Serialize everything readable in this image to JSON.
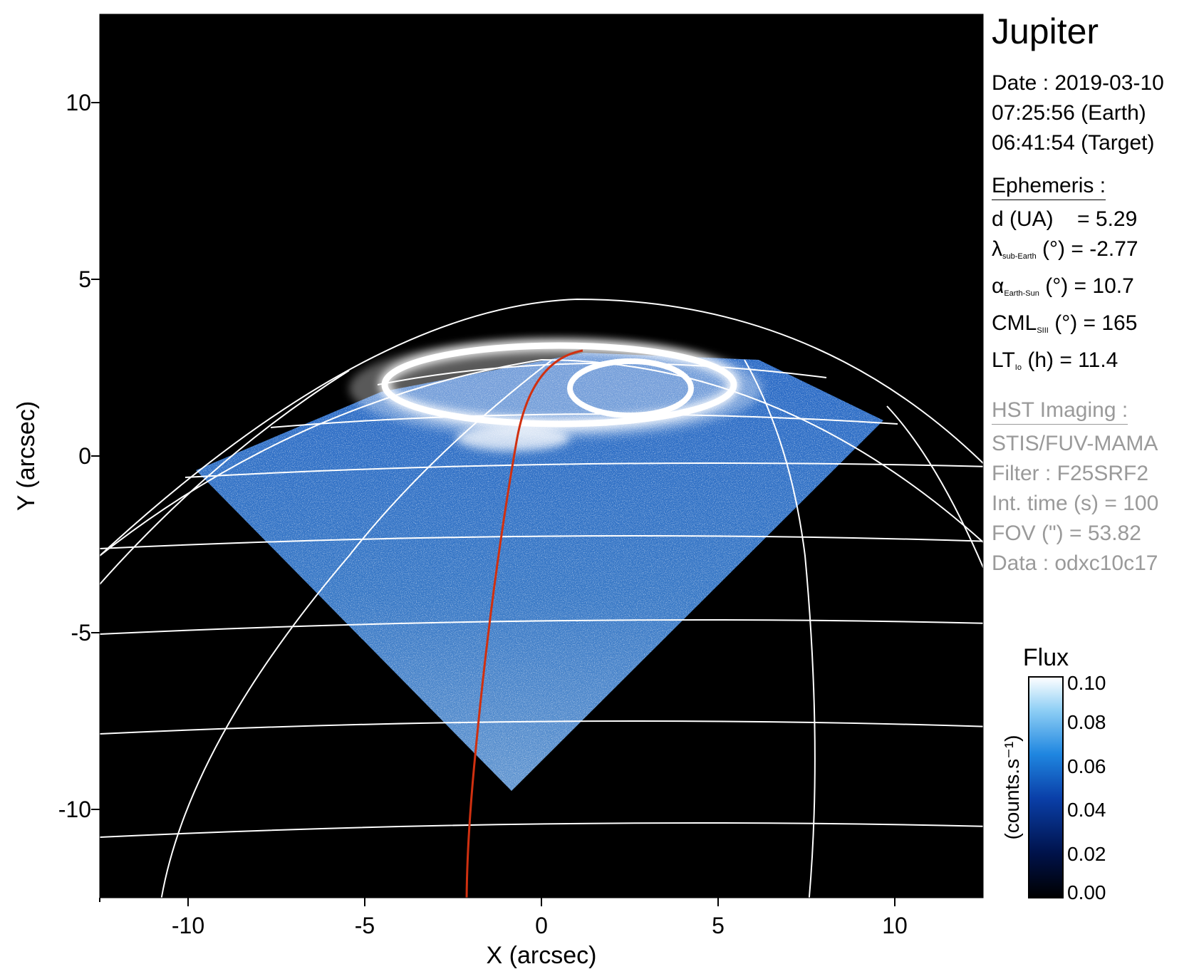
{
  "plot": {
    "xlabel": "X (arcsec)",
    "ylabel": "Y (arcsec)",
    "xlim": [
      -12.5,
      12.5
    ],
    "ylim": [
      -12.5,
      12.5
    ],
    "xticks": [
      "-10",
      "-5",
      "0",
      "5",
      "10"
    ],
    "yticks": [
      "10",
      "5",
      "0",
      "-5",
      "-10"
    ],
    "background": "#000000",
    "grid_color": "#ffffff",
    "footprint_color": "#d03010"
  },
  "info": {
    "title": "Jupiter",
    "date_line": "Date : 2019-03-10",
    "time_earth": "07:25:56 (Earth)",
    "time_target": "06:41:54 (Target)",
    "ephemeris_header": "Ephemeris :",
    "d_label": "d (UA)",
    "d_value": "= 5.29",
    "lambda_sym": "λ",
    "lambda_sub": "sub-Earth",
    "lambda_rest": "(°) = -2.77",
    "alpha_sym": "α",
    "alpha_sub": "Earth-Sun",
    "alpha_rest": "(°) = 10.7",
    "cml_sym": "CML",
    "cml_sub": "SIII",
    "cml_rest": "(°) = 165",
    "lt_sym": "LT",
    "lt_sub": "Io",
    "lt_rest": "(h) = 11.4",
    "hst_header": "HST Imaging :",
    "instrument": "STIS/FUV-MAMA",
    "filter": "Filter : F25SRF2",
    "int_time": "Int. time (s) = 100",
    "fov": "FOV (\") = 53.82",
    "data_id": "Data : odxc10c17"
  },
  "colorbar": {
    "title": "Flux",
    "unit": "(counts.s⁻¹)",
    "ticks": [
      "0.10",
      "0.08",
      "0.06",
      "0.04",
      "0.02",
      "0.00"
    ],
    "min": 0.0,
    "max": 0.1,
    "colors": [
      "#000000",
      "#00124a",
      "#0a3fa8",
      "#1f86e0",
      "#8fcff5",
      "#ffffff"
    ]
  }
}
